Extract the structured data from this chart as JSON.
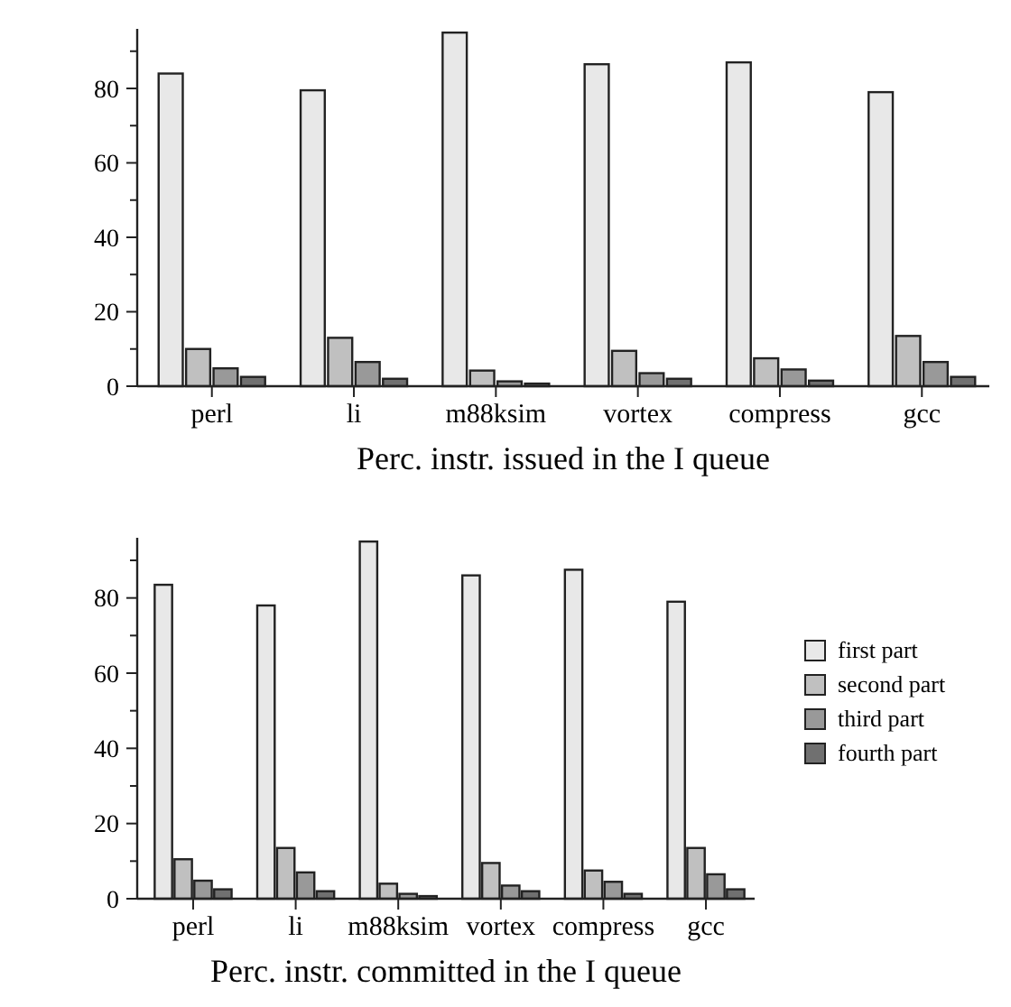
{
  "chart_data": [
    {
      "type": "bar",
      "xlabel": "Perc. instr. issued in the I queue",
      "categories": [
        "perl",
        "li",
        "m88ksim",
        "vortex",
        "compress",
        "gcc"
      ],
      "ylim": [
        0,
        96
      ],
      "yticks": [
        0,
        {
          "value": 10,
          "label": null
        },
        20,
        {
          "value": 30,
          "label": null
        },
        40,
        {
          "value": 50,
          "label": null
        },
        60,
        {
          "value": 70,
          "label": null
        },
        80,
        {
          "value": 90,
          "label": null
        }
      ],
      "legend": false,
      "series": [
        {
          "color": "#e8e8e8",
          "values": [
            84,
            79.5,
            95,
            86.5,
            87,
            79
          ]
        },
        {
          "color": "#c0c0c0",
          "values": [
            10,
            13,
            4.2,
            9.5,
            7.5,
            13.5
          ]
        },
        {
          "color": "#999999",
          "values": [
            4.8,
            6.5,
            1.3,
            3.5,
            4.5,
            6.5
          ]
        },
        {
          "color": "#707070",
          "values": [
            2.5,
            2,
            0.7,
            2,
            1.5,
            2.5
          ]
        }
      ]
    },
    {
      "type": "bar",
      "xlabel": "Perc. instr. committed in the I queue",
      "categories": [
        "perl",
        "li",
        "m88ksim",
        "vortex",
        "compress",
        "gcc"
      ],
      "ylim": [
        0,
        96
      ],
      "yticks": [
        0,
        {
          "value": 10,
          "label": null
        },
        20,
        {
          "value": 30,
          "label": null
        },
        40,
        {
          "value": 50,
          "label": null
        },
        60,
        {
          "value": 70,
          "label": null
        },
        80,
        {
          "value": 90,
          "label": null
        }
      ],
      "legend": "right",
      "series": [
        {
          "name": "first part",
          "color": "#e8e8e8",
          "values": [
            83.5,
            78,
            95,
            86,
            87.5,
            79
          ]
        },
        {
          "name": "second part",
          "color": "#c0c0c0",
          "values": [
            10.5,
            13.5,
            4,
            9.5,
            7.5,
            13.5
          ]
        },
        {
          "name": "third part",
          "color": "#999999",
          "values": [
            4.8,
            7,
            1.3,
            3.5,
            4.5,
            6.5
          ]
        },
        {
          "name": "fourth part",
          "color": "#707070",
          "values": [
            2.5,
            2,
            0.7,
            2,
            1.3,
            2.5
          ]
        }
      ]
    }
  ]
}
